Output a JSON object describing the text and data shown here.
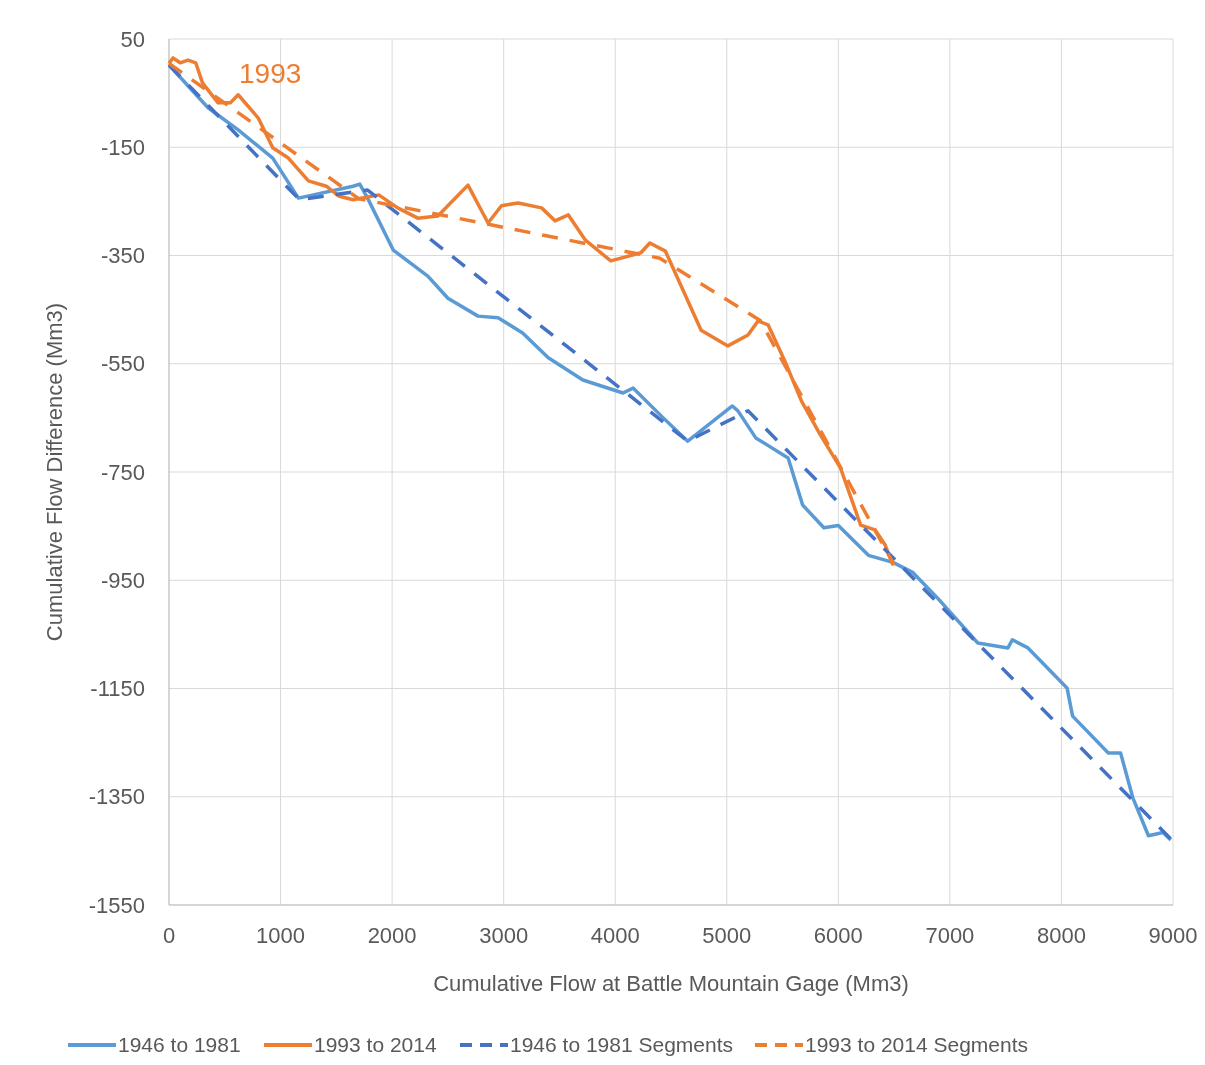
{
  "chart_data": {
    "type": "line",
    "xlabel": "Cumulative Flow at Battle Mountain Gage (Mm3)",
    "ylabel": "Cumulative Flow Difference (Mm3)",
    "xlim": [
      0,
      9000
    ],
    "ylim": [
      -1550,
      50
    ],
    "xticks": [
      0,
      1000,
      2000,
      3000,
      4000,
      5000,
      6000,
      7000,
      8000,
      9000
    ],
    "yticks": [
      -1550,
      -1350,
      -1150,
      -950,
      -750,
      -550,
      -350,
      -150,
      50
    ],
    "grid": true,
    "legend": "bottom",
    "annotations": [
      "1993"
    ],
    "series": [
      {
        "name": "1946 to 1981",
        "color": "#5b9bd5",
        "line_style": "solid",
        "x": [
          0,
          350,
          620,
          930,
          1160,
          1650,
          1710,
          1780,
          2010,
          2320,
          2500,
          2770,
          2950,
          3170,
          3400,
          3710,
          4070,
          4160,
          4430,
          4650,
          5050,
          5100,
          5260,
          5550,
          5680,
          5870,
          6000,
          6270,
          6490,
          6670,
          6890,
          7250,
          7520,
          7560,
          7700,
          8050,
          8100,
          8420,
          8530,
          8640,
          8780,
          8910,
          8980
        ],
        "values": [
          2,
          -77,
          -118,
          -170,
          -244,
          -222,
          -218,
          -244,
          -340,
          -388,
          -429,
          -462,
          -465,
          -493,
          -539,
          -580,
          -604,
          -595,
          -650,
          -693,
          -628,
          -637,
          -687,
          -724,
          -811,
          -853,
          -849,
          -904,
          -917,
          -936,
          -983,
          -1066,
          -1075,
          -1060,
          -1075,
          -1149,
          -1201,
          -1269,
          -1269,
          -1352,
          -1422,
          -1416,
          -1430
        ]
      },
      {
        "name": "1993 to 2014",
        "color": "#ed7d31",
        "line_style": "solid",
        "x": [
          0,
          36,
          100,
          170,
          240,
          300,
          440,
          550,
          620,
          800,
          930,
          1070,
          1250,
          1410,
          1520,
          1650,
          1880,
          2050,
          2230,
          2410,
          2680,
          2860,
          2980,
          3130,
          3340,
          3460,
          3580,
          3730,
          3960,
          4230,
          4310,
          4450,
          4770,
          5010,
          5190,
          5280,
          5370,
          5520,
          5670,
          5840,
          6020,
          6200,
          6330,
          6420,
          6490
        ],
        "values": [
          5,
          15,
          6,
          11,
          6,
          -31,
          -68,
          -68,
          -53,
          -96,
          -151,
          -170,
          -212,
          -222,
          -240,
          -247,
          -238,
          -262,
          -281,
          -277,
          -220,
          -290,
          -258,
          -253,
          -262,
          -286,
          -275,
          -321,
          -360,
          -345,
          -327,
          -342,
          -488,
          -517,
          -497,
          -471,
          -478,
          -545,
          -619,
          -682,
          -743,
          -848,
          -857,
          -885,
          -922
        ]
      },
      {
        "name": "1946 to 1981 Segments",
        "color": "#4472c4",
        "line_style": "dashed",
        "x": [
          0,
          1170,
          1780,
          4650,
          5190,
          9000
        ],
        "values": [
          2,
          -247,
          -229,
          -693,
          -637,
          -1432
        ]
      },
      {
        "name": "1993 to 2014 Segments",
        "color": "#ed7d31",
        "line_style": "dashed",
        "x": [
          0,
          1700,
          4400,
          5300,
          6500
        ],
        "values": [
          5,
          -245,
          -355,
          -470,
          -922
        ]
      }
    ]
  }
}
